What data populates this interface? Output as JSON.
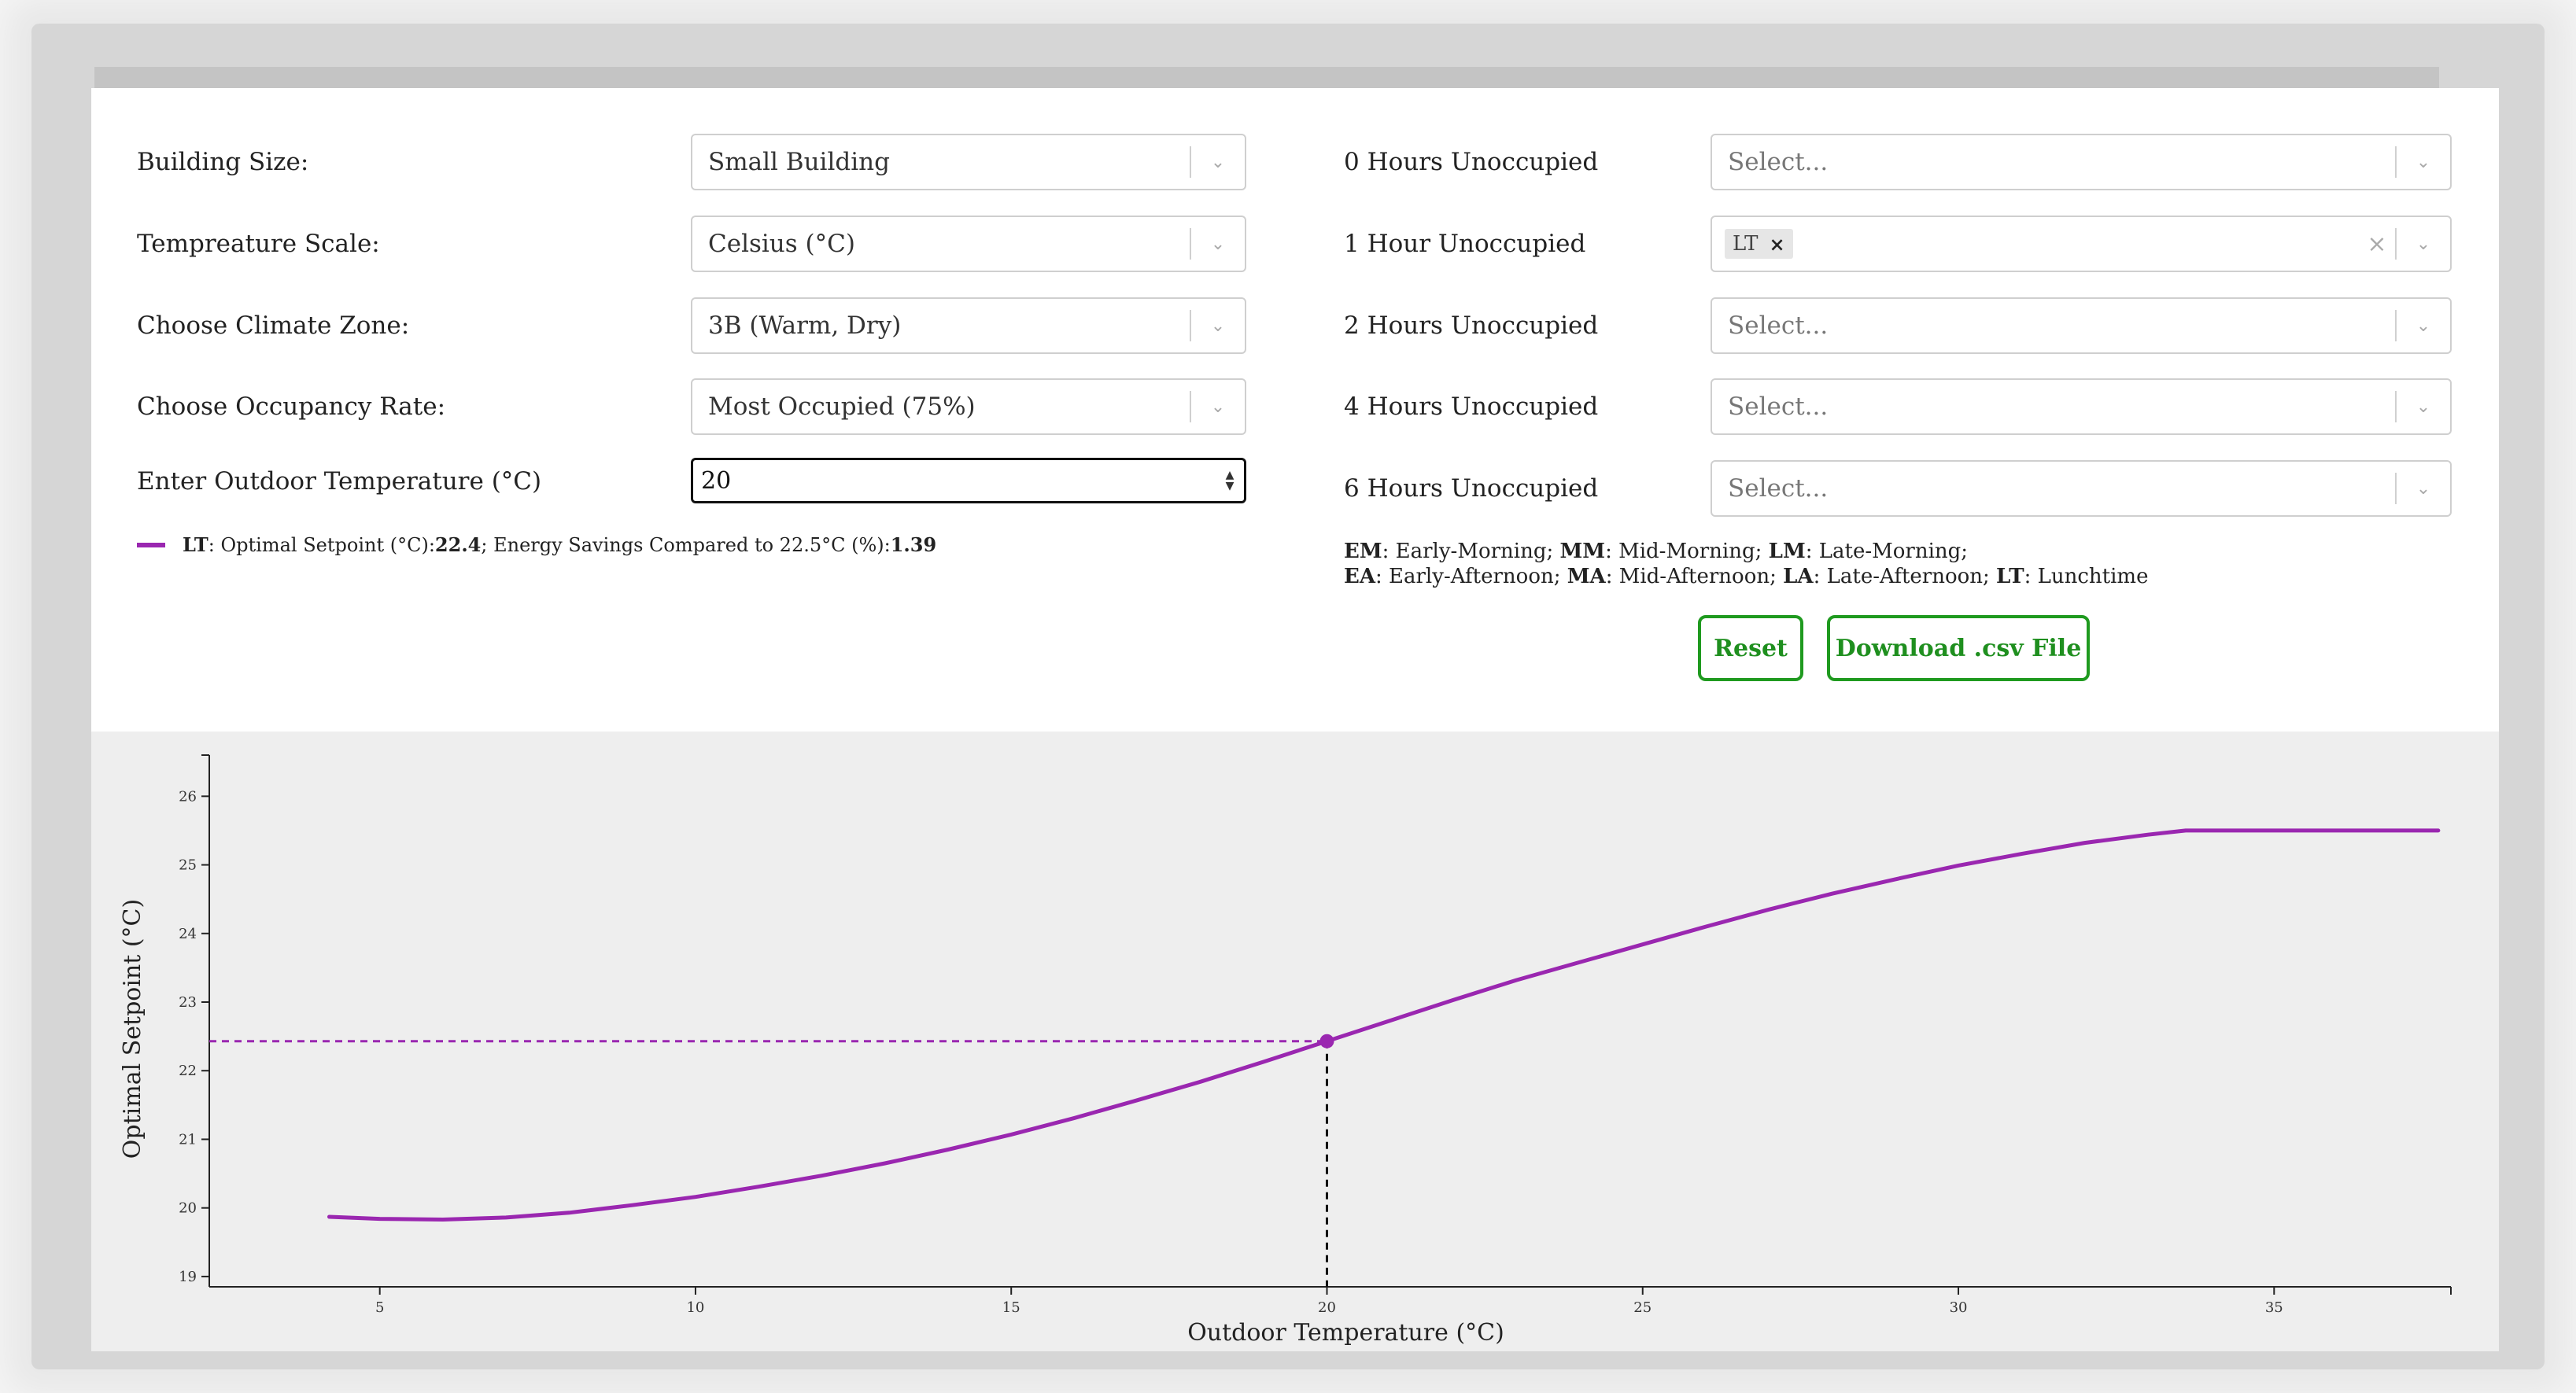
{
  "form": {
    "building_size": {
      "label": "Building Size:",
      "value": "Small Building"
    },
    "temperature_scale": {
      "label": "Tempreature Scale:",
      "value": "Celsius (°C)"
    },
    "climate_zone": {
      "label": "Choose Climate Zone:",
      "value": "3B (Warm, Dry)"
    },
    "occupancy_rate": {
      "label": "Choose Occupancy Rate:",
      "value": "Most Occupied (75%)"
    },
    "outdoor_temp": {
      "label": "Enter Outdoor Temperature (°C)",
      "value": "20"
    }
  },
  "unoccupied": [
    {
      "label": "0 Hours Unoccupied",
      "placeholder": "Select...",
      "tags": []
    },
    {
      "label": "1 Hour Unoccupied",
      "placeholder": "",
      "tags": [
        "LT"
      ]
    },
    {
      "label": "2 Hours Unoccupied",
      "placeholder": "Select...",
      "tags": []
    },
    {
      "label": "4 Hours Unoccupied",
      "placeholder": "Select...",
      "tags": []
    },
    {
      "label": "6 Hours Unoccupied",
      "placeholder": "Select...",
      "tags": []
    }
  ],
  "result_legend": {
    "series": "LT",
    "setpoint_label": ": Optimal Setpoint (°C): ",
    "setpoint_value": "22.4",
    "savings_label": "; Energy Savings Compared to 22.5°C (%): ",
    "savings_value": "1.39",
    "color": "#9a27b0"
  },
  "key": {
    "line1": [
      {
        "abbr": "EM",
        "text": ": Early-Morning; "
      },
      {
        "abbr": "MM",
        "text": ": Mid-Morning; "
      },
      {
        "abbr": "LM",
        "text": ": Late-Morning;"
      }
    ],
    "line2": [
      {
        "abbr": "EA",
        "text": ": Early-Afternoon; "
      },
      {
        "abbr": "MA",
        "text": ": Mid-Afternoon; "
      },
      {
        "abbr": "LA",
        "text": ": Late-Afternoon; "
      },
      {
        "abbr": "LT",
        "text": ": Lunchtime"
      }
    ]
  },
  "buttons": {
    "reset": "Reset",
    "download": "Download .csv File",
    "color": "#1f9a1f"
  },
  "chart_data": {
    "type": "line",
    "xlabel": "Outdoor Temperature (°C)",
    "ylabel": "Optimal Setpoint (°C)",
    "xlim": [
      2.3,
      37.8
    ],
    "ylim": [
      18.85,
      26.6
    ],
    "xticks": [
      5,
      10,
      15,
      20,
      25,
      30,
      35
    ],
    "yticks": [
      19,
      20,
      21,
      22,
      23,
      24,
      25,
      26
    ],
    "series": [
      {
        "color": "#9a27b0",
        "x": [
          4.2,
          5,
          6,
          7,
          8,
          9,
          10,
          11,
          12,
          13,
          14,
          15,
          16,
          17,
          18,
          19,
          20,
          21,
          22,
          23,
          24,
          25,
          26,
          27,
          28,
          29,
          30,
          31,
          32,
          33,
          33.6,
          35,
          36,
          37.6
        ],
        "y": [
          19.87,
          19.84,
          19.83,
          19.86,
          19.93,
          20.04,
          20.16,
          20.31,
          20.47,
          20.65,
          20.85,
          21.07,
          21.31,
          21.57,
          21.84,
          22.13,
          22.43,
          22.73,
          23.03,
          23.32,
          23.58,
          23.84,
          24.1,
          24.35,
          24.58,
          24.79,
          24.99,
          25.16,
          25.32,
          25.44,
          25.5,
          25.5,
          25.5,
          25.5
        ]
      }
    ],
    "highlight": {
      "x": 20,
      "y": 22.43
    }
  }
}
